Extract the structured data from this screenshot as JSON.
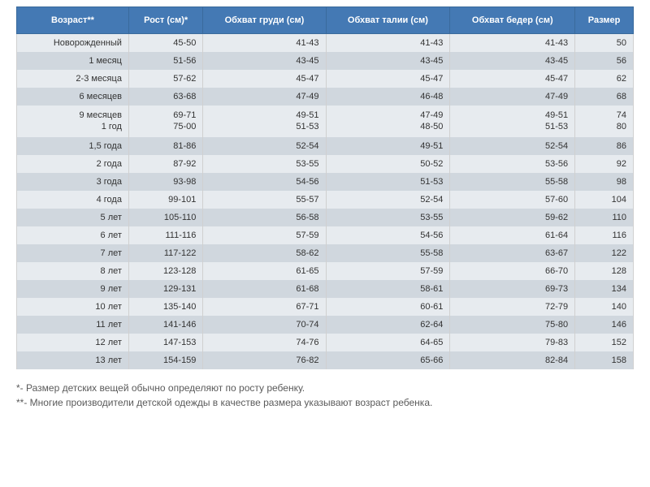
{
  "table": {
    "header_bg": "#4479b4",
    "header_text_color": "#ffffff",
    "row_odd_bg": "#e7ebef",
    "row_even_bg": "#d0d7de",
    "columns": [
      "Возраст**",
      "Рост (см)*",
      "Обхват груди (см)",
      "Обхват талии (см)",
      "Обхват бедер (см)",
      "Размер"
    ],
    "rows": [
      {
        "cells": [
          "Новорожденный",
          "45-50",
          "41-43",
          "41-43",
          "41-43",
          "50"
        ]
      },
      {
        "cells": [
          "1 месяц",
          "51-56",
          "43-45",
          "43-45",
          "43-45",
          "56"
        ]
      },
      {
        "cells": [
          "2-3 месяца",
          "57-62",
          "45-47",
          "45-47",
          "45-47",
          "62"
        ]
      },
      {
        "cells": [
          "6 месяцев",
          "63-68",
          "47-49",
          "46-48",
          "47-49",
          "68"
        ]
      },
      {
        "cells": [
          "9 месяцев\n1 год",
          "69-71\n75-00",
          "49-51\n51-53",
          "47-49\n48-50",
          "49-51\n51-53",
          "74\n80"
        ],
        "split": true
      },
      {
        "cells": [
          "1,5 года",
          "81-86",
          "52-54",
          "49-51",
          "52-54",
          "86"
        ]
      },
      {
        "cells": [
          "2 года",
          "87-92",
          "53-55",
          "50-52",
          "53-56",
          "92"
        ]
      },
      {
        "cells": [
          "3 года",
          "93-98",
          "54-56",
          "51-53",
          "55-58",
          "98"
        ]
      },
      {
        "cells": [
          "4 года",
          "99-101",
          "55-57",
          "52-54",
          "57-60",
          "104"
        ]
      },
      {
        "cells": [
          "5 лет",
          "105-110",
          "56-58",
          "53-55",
          "59-62",
          "110"
        ]
      },
      {
        "cells": [
          "6 лет",
          "111-116",
          "57-59",
          "54-56",
          "61-64",
          "116"
        ]
      },
      {
        "cells": [
          "7 лет",
          "117-122",
          "58-62",
          "55-58",
          "63-67",
          "122"
        ]
      },
      {
        "cells": [
          "8 лет",
          "123-128",
          "61-65",
          "57-59",
          "66-70",
          "128"
        ]
      },
      {
        "cells": [
          "9 лет",
          "129-131",
          "61-68",
          "58-61",
          "69-73",
          "134"
        ]
      },
      {
        "cells": [
          "10 лет",
          "135-140",
          "67-71",
          "60-61",
          "72-79",
          "140"
        ]
      },
      {
        "cells": [
          "11 лет",
          "141-146",
          "70-74",
          "62-64",
          "75-80",
          "146"
        ]
      },
      {
        "cells": [
          "12 лет",
          "147-153",
          "74-76",
          "64-65",
          "79-83",
          "152"
        ]
      },
      {
        "cells": [
          "13 лет",
          "154-159",
          "76-82",
          "65-66",
          "82-84",
          "158"
        ]
      }
    ]
  },
  "footnotes": {
    "line1": "*- Размер детских вещей обычно определяют по росту ребенку.",
    "line2": "**- Многие производители детской одежды в качестве размера указывают возраст ребенка."
  }
}
